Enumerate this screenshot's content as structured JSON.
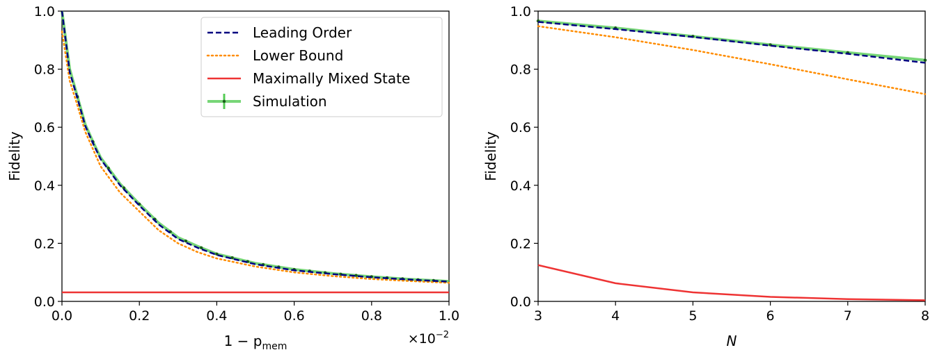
{
  "colors": {
    "leading_order": "#000080",
    "lower_bound": "#FF8C00",
    "maximally_mixed": "#EE3333",
    "simulation": "#55CC55",
    "simulation_marker": "#1A5C1A"
  },
  "chart_data": [
    {
      "type": "line",
      "xlabel_main": "1 − p",
      "xlabel_sub": "mem",
      "ylabel": "Fidelity",
      "xlim": [
        0,
        1.0
      ],
      "ylim": [
        0,
        1.0
      ],
      "x_scale_base": "×10",
      "x_scale_exp": "−2",
      "x_ticks": [
        "0.0",
        "0.2",
        "0.4",
        "0.6",
        "0.8",
        "1.0"
      ],
      "y_ticks": [
        "0.0",
        "0.2",
        "0.4",
        "0.6",
        "0.8",
        "1.0"
      ],
      "grid": false,
      "legend": {
        "position": "top-right",
        "entries": [
          "Leading Order",
          "Lower Bound",
          "Maximally Mixed State",
          "Simulation"
        ]
      },
      "series": [
        {
          "name": "Leading Order",
          "style": "dashed",
          "x": [
            0,
            0.02,
            0.04,
            0.06,
            0.08,
            0.1,
            0.15,
            0.2,
            0.25,
            0.3,
            0.35,
            0.4,
            0.5,
            0.6,
            0.7,
            0.8,
            0.9,
            1.0
          ],
          "y": [
            1.0,
            0.79,
            0.7,
            0.605,
            0.545,
            0.49,
            0.4,
            0.33,
            0.265,
            0.215,
            0.185,
            0.16,
            0.128,
            0.107,
            0.094,
            0.083,
            0.075,
            0.068
          ]
        },
        {
          "name": "Lower Bound",
          "style": "dotted",
          "x": [
            0,
            0.02,
            0.04,
            0.06,
            0.08,
            0.1,
            0.15,
            0.2,
            0.25,
            0.3,
            0.35,
            0.4,
            0.5,
            0.6,
            0.7,
            0.8,
            0.9,
            1.0
          ],
          "y": [
            0.93,
            0.76,
            0.675,
            0.585,
            0.525,
            0.465,
            0.375,
            0.31,
            0.245,
            0.2,
            0.17,
            0.148,
            0.12,
            0.1,
            0.087,
            0.077,
            0.07,
            0.064
          ]
        },
        {
          "name": "Maximally Mixed State",
          "style": "solid",
          "x": [
            0,
            1.0
          ],
          "y": [
            0.031,
            0.031
          ]
        },
        {
          "name": "Simulation",
          "style": "solid-markers",
          "x": [
            0,
            0.02,
            0.04,
            0.06,
            0.08,
            0.1,
            0.15,
            0.2,
            0.25,
            0.3,
            0.35,
            0.4,
            0.5,
            0.6,
            0.7,
            0.8,
            0.9,
            1.0
          ],
          "y": [
            1.0,
            0.8,
            0.705,
            0.61,
            0.55,
            0.495,
            0.405,
            0.335,
            0.27,
            0.22,
            0.19,
            0.163,
            0.131,
            0.11,
            0.096,
            0.085,
            0.076,
            0.069
          ],
          "marker_x": [
            0.04,
            0.08,
            0.12,
            0.16,
            0.2,
            0.24,
            0.28,
            0.32,
            0.36,
            0.4,
            0.44,
            0.48,
            0.52,
            0.56,
            0.6,
            0.64,
            0.68,
            0.72,
            0.76,
            0.8,
            0.84,
            0.88,
            0.92,
            0.96
          ]
        }
      ]
    },
    {
      "type": "line",
      "xlabel": "N",
      "ylabel": "Fidelity",
      "xlim": [
        3,
        8
      ],
      "ylim": [
        0,
        1.0
      ],
      "x_ticks": [
        "3",
        "4",
        "5",
        "6",
        "7",
        "8"
      ],
      "y_ticks": [
        "0.0",
        "0.2",
        "0.4",
        "0.6",
        "0.8",
        "1.0"
      ],
      "grid": false,
      "series": [
        {
          "name": "Leading Order",
          "style": "dashed",
          "x": [
            3,
            4,
            5,
            6,
            7,
            8
          ],
          "y": [
            0.963,
            0.938,
            0.911,
            0.881,
            0.853,
            0.822
          ]
        },
        {
          "name": "Lower Bound",
          "style": "dotted",
          "x": [
            3,
            4,
            5,
            6,
            7,
            8
          ],
          "y": [
            0.948,
            0.91,
            0.866,
            0.817,
            0.765,
            0.714
          ]
        },
        {
          "name": "Maximally Mixed State",
          "style": "solid",
          "x": [
            3,
            4,
            5,
            6,
            7,
            8
          ],
          "y": [
            0.125,
            0.0625,
            0.031,
            0.0156,
            0.0078,
            0.0039
          ]
        },
        {
          "name": "Simulation",
          "style": "solid-markers",
          "x": [
            3,
            4,
            5,
            6,
            7,
            8
          ],
          "y": [
            0.966,
            0.942,
            0.913,
            0.884,
            0.857,
            0.831
          ]
        }
      ]
    }
  ]
}
